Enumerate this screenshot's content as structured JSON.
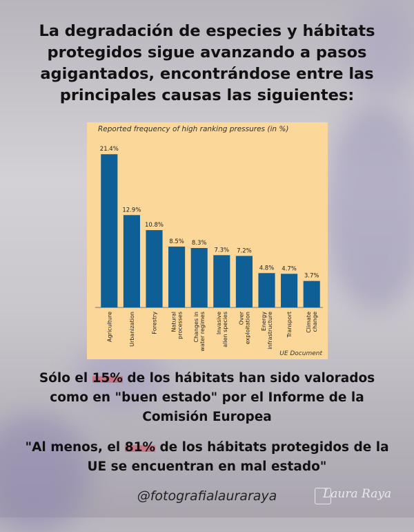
{
  "headline": "La degradación de especies y hábitats protegidos sigue avanzando a pasos agigantados, encontrándose entre las principales causas las siguientes:",
  "chart_data": {
    "type": "bar",
    "title": "Reported frequency of high ranking pressures (in %)",
    "categories": [
      "Agriculture",
      "Urbanization",
      "Forestry",
      "Natural processes",
      "Changes in water regimes",
      "Invasive alien species",
      "Over exploitation",
      "Energy infrastructure",
      "Transport",
      "Climate change"
    ],
    "category_lines": [
      [
        "Agriculture"
      ],
      [
        "Urbanization"
      ],
      [
        "Forestry"
      ],
      [
        "Natural",
        "processes"
      ],
      [
        "Changes in",
        "water regimes"
      ],
      [
        "Invasive",
        "alien species"
      ],
      [
        "Over",
        "exploitation"
      ],
      [
        "Energy",
        "infrastructure"
      ],
      [
        "Transport"
      ],
      [
        "Climate",
        "change"
      ]
    ],
    "values": [
      21.4,
      12.9,
      10.8,
      8.5,
      8.3,
      7.3,
      7.2,
      4.8,
      4.7,
      3.7
    ],
    "value_labels": [
      "21.4%",
      "12.9%",
      "10.8%",
      "8.5%",
      "8.3%",
      "7.3%",
      "7.2%",
      "4.8%",
      "4.7%",
      "3.7%"
    ],
    "ylim": [
      0,
      22
    ],
    "bar_color": "#0e5f96",
    "background_color": "#fbd79a",
    "grid": false
  },
  "source_note": "UE Document",
  "paragraph1": {
    "before": "Sólo el ",
    "highlight": "15%",
    "after": " de los hábitats han sido valorados como en \"buen estado\" por el Informe de la Comisión Europea"
  },
  "paragraph2": {
    "before": "\"Al menos, el ",
    "highlight": "81%",
    "after": " de los hábitats protegidos de la UE se encuentran en mal estado\""
  },
  "handle": "@fotografialauraraya",
  "watermark": "Laura Raya",
  "highlight_color": "#dc465a"
}
